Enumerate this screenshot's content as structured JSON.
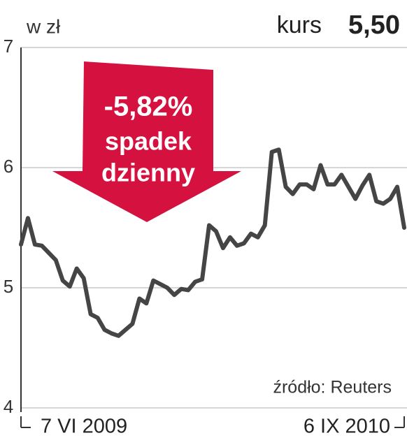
{
  "chart_data": {
    "type": "line",
    "unit_label": "w zł",
    "price_label": "kurs",
    "price_value": "5,50",
    "badge": {
      "change": "-5,82%",
      "line1": "spadek",
      "line2": "dzienny"
    },
    "source": "źródło: Reuters",
    "categories": [
      "7 VI 2009",
      null,
      null,
      null,
      null,
      null,
      null,
      null,
      null,
      null,
      null,
      null,
      null,
      null,
      null,
      null,
      null,
      null,
      null,
      null,
      null,
      null,
      null,
      null,
      null,
      null,
      null,
      null,
      null,
      null,
      null,
      null,
      null,
      null,
      null,
      null,
      null,
      null,
      null,
      null,
      null,
      null,
      null,
      null,
      null,
      null,
      null,
      null,
      null,
      null,
      null,
      null,
      null,
      null,
      null,
      "6 IX 2010"
    ],
    "values": [
      5.36,
      5.58,
      5.36,
      5.35,
      5.29,
      5.23,
      5.06,
      5.01,
      5.16,
      5.08,
      4.78,
      4.75,
      4.65,
      4.62,
      4.6,
      4.65,
      4.7,
      4.91,
      4.87,
      5.06,
      5.03,
      5.0,
      4.94,
      4.99,
      4.98,
      5.05,
      5.07,
      5.52,
      5.47,
      5.33,
      5.42,
      5.35,
      5.37,
      5.45,
      5.42,
      5.52,
      6.13,
      6.15,
      5.84,
      5.78,
      5.86,
      5.86,
      5.82,
      6.02,
      5.86,
      5.86,
      5.94,
      5.84,
      5.74,
      5.85,
      5.94,
      5.72,
      5.7,
      5.74,
      5.84,
      5.5
    ],
    "color": "#454545",
    "ylim": [
      4,
      7
    ],
    "yticks": [
      4,
      5,
      6,
      7
    ],
    "grid": true
  }
}
